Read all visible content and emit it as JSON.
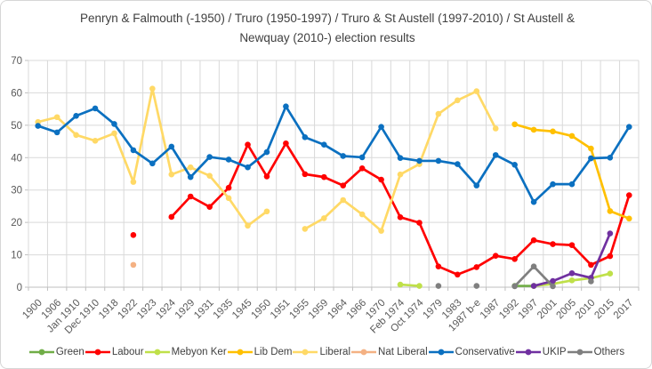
{
  "chart_data": {
    "type": "line",
    "title": "Penryn & Falmouth (-1950) / Truro (1950-1997) / Truro & St Austell (1997-2010) / St Austell & Newquay (2010-) election results",
    "xlabel": "",
    "ylabel": "",
    "ylim": [
      0,
      70
    ],
    "yticks": [
      0,
      10,
      20,
      30,
      40,
      50,
      60,
      70
    ],
    "grid": true,
    "legend_position": "bottom",
    "categories": [
      "1900",
      "1906",
      "Jan 1910",
      "Dec 1910",
      "1918",
      "1922",
      "1923",
      "1924",
      "1929",
      "1931",
      "1935",
      "1945",
      "1950",
      "1951",
      "1955",
      "1959",
      "1964",
      "1966",
      "1970",
      "Feb 1974",
      "Oct 1974",
      "1979",
      "1983",
      "1987 b-e",
      "1987",
      "1992",
      "1997",
      "2001",
      "2005",
      "2010",
      "2015",
      "2017"
    ],
    "series": [
      {
        "name": "Green",
        "color": "#70AD47",
        "values": [
          null,
          null,
          null,
          null,
          null,
          null,
          null,
          null,
          null,
          null,
          null,
          null,
          null,
          null,
          null,
          null,
          null,
          null,
          null,
          null,
          null,
          null,
          null,
          null,
          null,
          0.4,
          0.4,
          null,
          null,
          null,
          null,
          null
        ]
      },
      {
        "name": "Labour",
        "color": "#FF0000",
        "values": [
          null,
          null,
          null,
          null,
          null,
          16.1,
          null,
          21.7,
          28.0,
          24.8,
          30.7,
          44.0,
          34.2,
          44.4,
          34.9,
          34.0,
          31.4,
          36.7,
          33.2,
          21.6,
          19.9,
          6.4,
          3.9,
          6.2,
          9.7,
          8.7,
          14.5,
          13.3,
          13.0,
          6.9,
          9.6,
          28.4
        ]
      },
      {
        "name": "Mebyon Ker",
        "color": "#BFE049",
        "values": [
          null,
          null,
          null,
          null,
          null,
          null,
          null,
          null,
          null,
          null,
          null,
          null,
          null,
          null,
          null,
          null,
          null,
          null,
          null,
          0.8,
          0.4,
          null,
          null,
          null,
          null,
          null,
          0.4,
          1.0,
          2.1,
          2.8,
          4.2,
          null
        ]
      },
      {
        "name": "Lib Dem",
        "color": "#FFC000",
        "values": [
          null,
          null,
          null,
          null,
          null,
          null,
          null,
          null,
          null,
          null,
          null,
          null,
          null,
          null,
          null,
          null,
          null,
          null,
          null,
          null,
          null,
          null,
          null,
          null,
          null,
          50.3,
          48.6,
          48.1,
          46.7,
          42.8,
          23.5,
          21.2
        ]
      },
      {
        "name": "Liberal",
        "color": "#FFD966",
        "values": [
          51.0,
          52.5,
          47.0,
          45.2,
          47.5,
          32.5,
          61.3,
          34.8,
          37.0,
          34.4,
          27.5,
          19.0,
          23.4,
          null,
          18.0,
          21.3,
          26.9,
          22.5,
          17.4,
          34.8,
          38.0,
          53.5,
          57.7,
          60.5,
          49.0,
          null,
          null,
          null,
          null,
          null,
          null,
          null
        ]
      },
      {
        "name": "Nat Liberal",
        "color": "#F4B183",
        "values": [
          null,
          null,
          null,
          null,
          null,
          6.9,
          null,
          null,
          null,
          null,
          null,
          null,
          null,
          null,
          null,
          null,
          null,
          null,
          null,
          null,
          null,
          null,
          null,
          null,
          null,
          null,
          null,
          null,
          null,
          null,
          null,
          null
        ]
      },
      {
        "name": "Conservative",
        "color": "#0B70C0",
        "values": [
          49.8,
          47.8,
          52.9,
          55.2,
          50.4,
          42.3,
          38.2,
          43.4,
          34.0,
          40.2,
          39.4,
          37.0,
          41.7,
          55.8,
          46.3,
          44.0,
          40.5,
          40.1,
          49.5,
          39.9,
          39.0,
          39.0,
          38.0,
          31.4,
          40.8,
          37.8,
          26.3,
          31.8,
          31.8,
          39.8,
          40.0,
          49.5
        ]
      },
      {
        "name": "UKIP",
        "color": "#7030A0",
        "values": [
          null,
          null,
          null,
          null,
          null,
          null,
          null,
          null,
          null,
          null,
          null,
          null,
          null,
          null,
          null,
          null,
          null,
          null,
          null,
          null,
          null,
          null,
          null,
          null,
          null,
          null,
          0.4,
          1.9,
          4.3,
          2.9,
          16.6,
          null
        ]
      },
      {
        "name": "Others",
        "color": "#7F7F7F",
        "values": [
          null,
          null,
          null,
          null,
          null,
          null,
          null,
          null,
          null,
          null,
          null,
          null,
          null,
          null,
          null,
          null,
          null,
          null,
          null,
          null,
          null,
          0.4,
          null,
          0.4,
          null,
          0.3,
          6.4,
          0.3,
          null,
          1.8,
          null,
          null
        ]
      }
    ],
    "styles": {
      "gridline_color": "#D9D9D9",
      "axis_color": "#BFBFBF",
      "tick_label_color": "#595959",
      "title_color": "#3F3F3F",
      "legend_text_color": "#404040",
      "background": "#FFFFFF"
    }
  }
}
